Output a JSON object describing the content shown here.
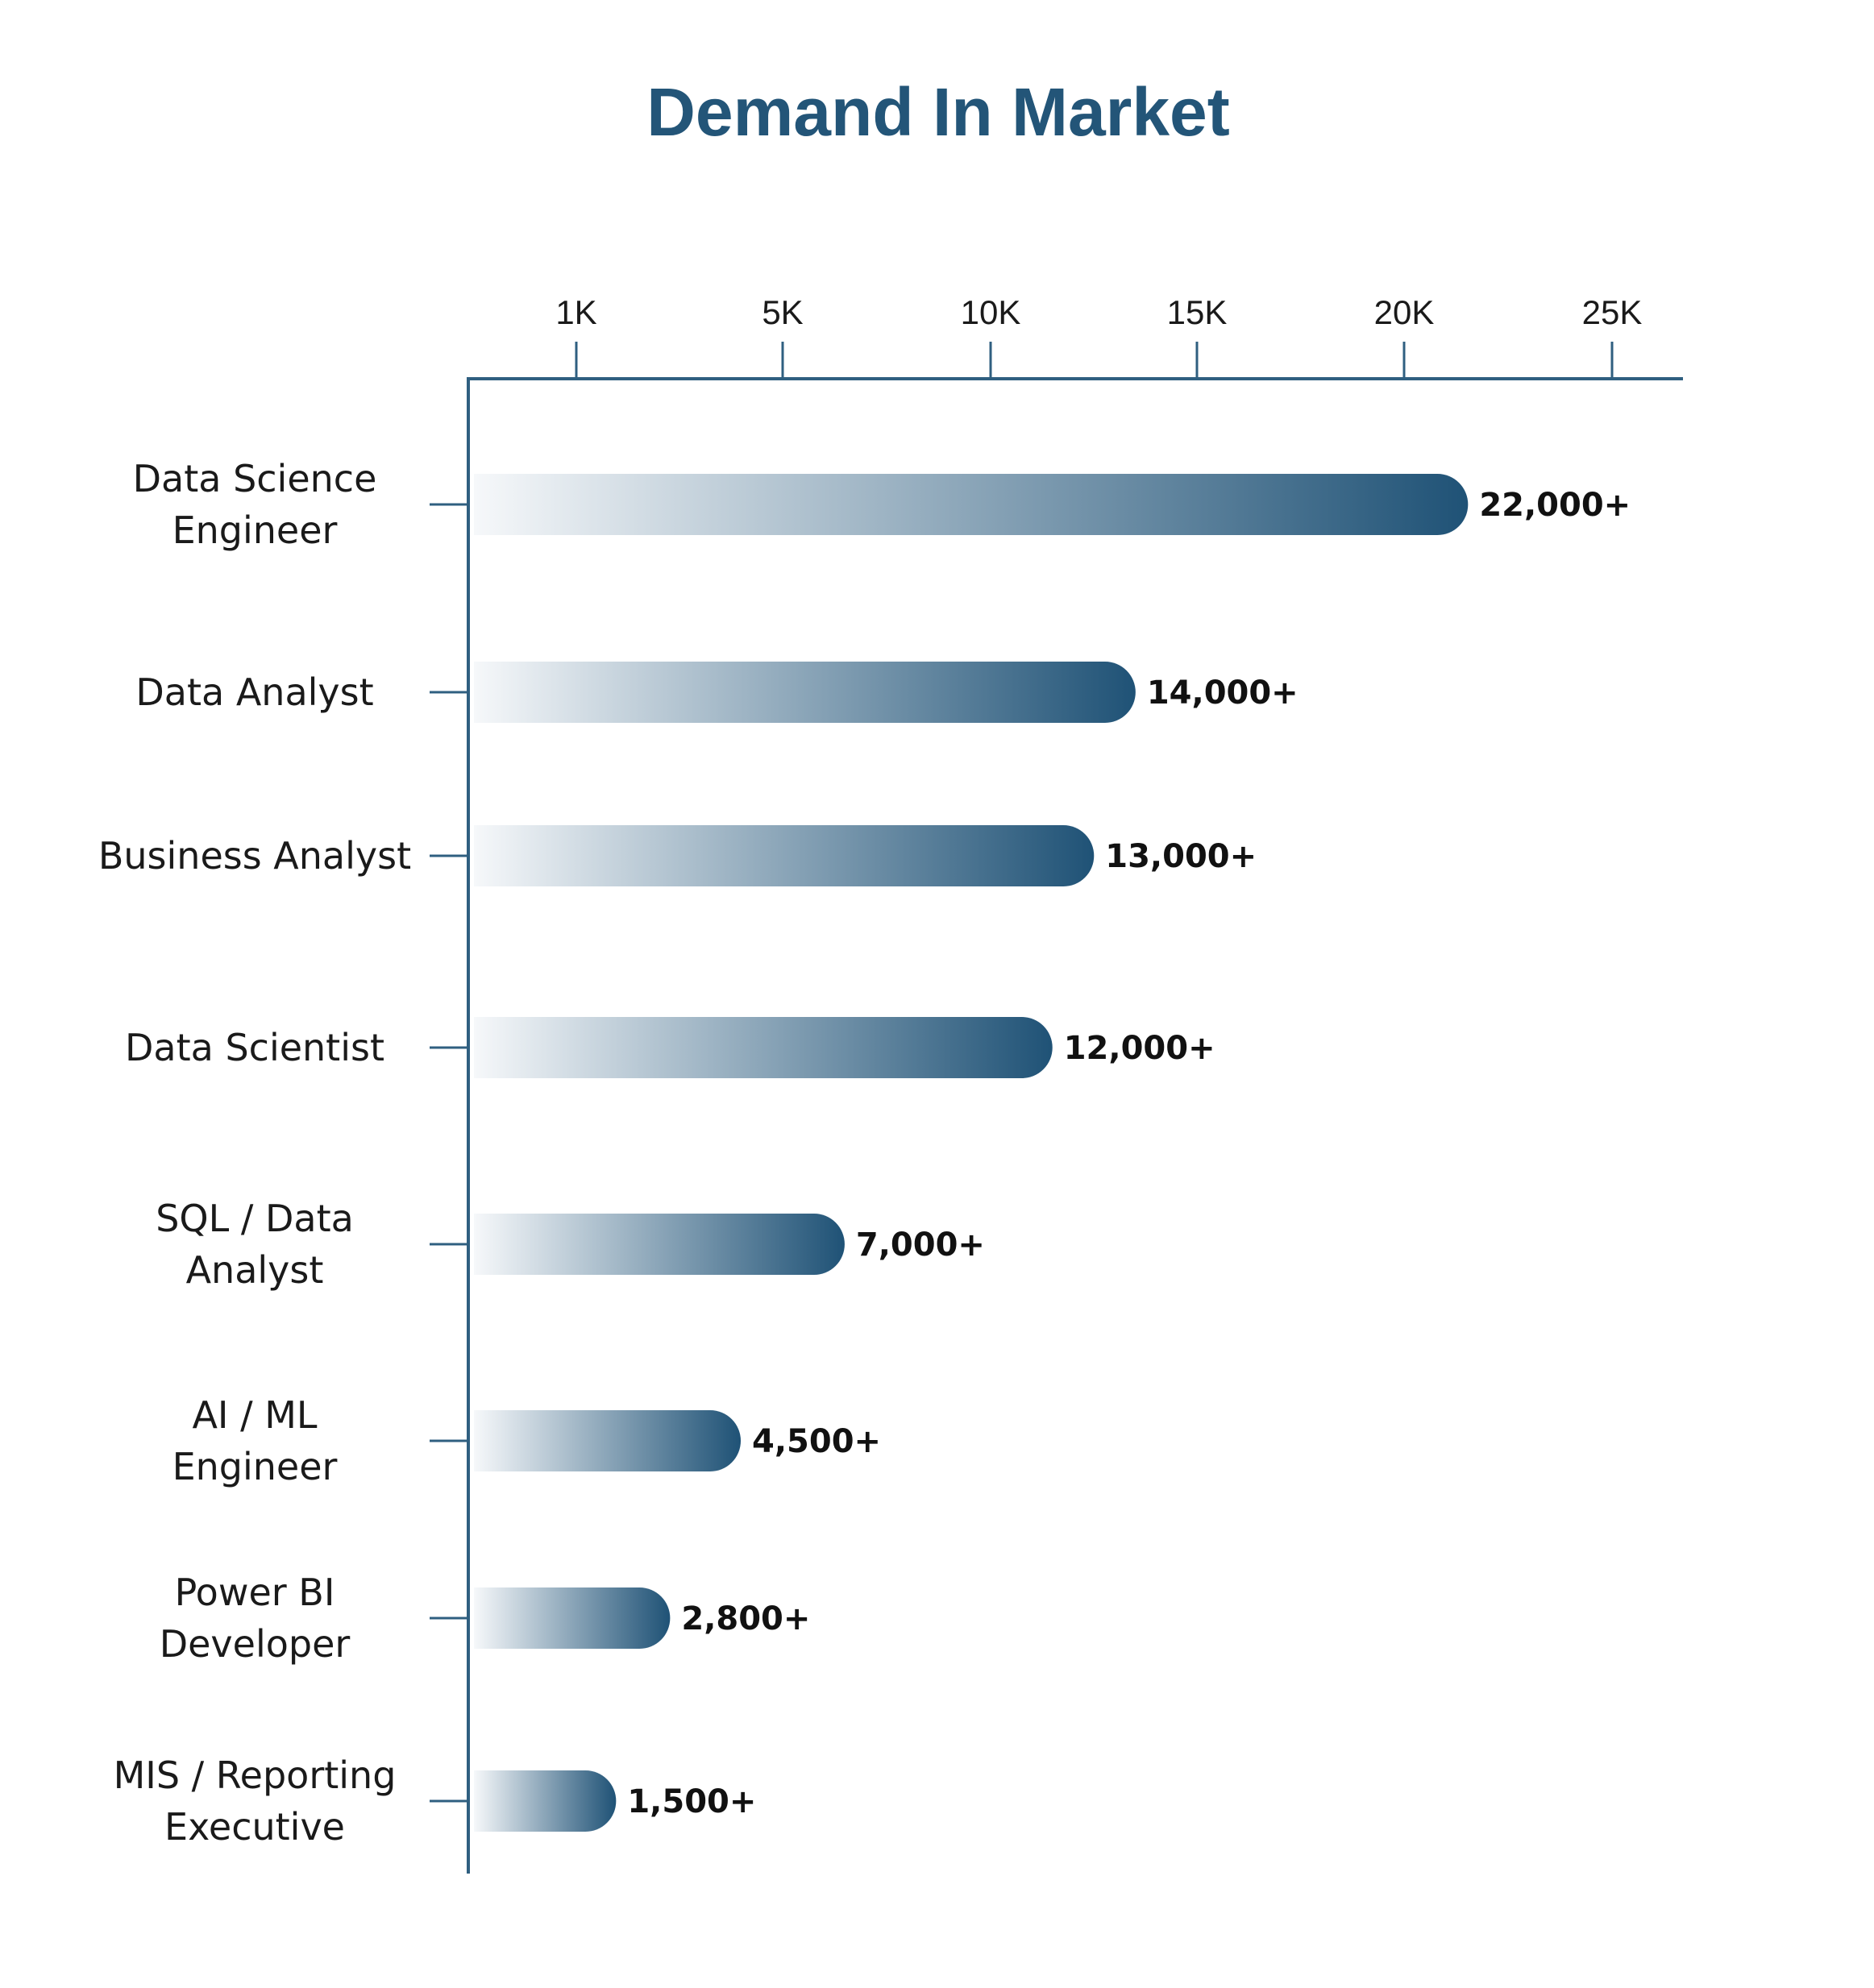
{
  "chart_data": {
    "type": "bar",
    "orientation": "horizontal",
    "title": "Demand In Market",
    "xlabel": "",
    "ylabel": "",
    "x_ticks": [
      "1K",
      "5K",
      "10K",
      "15K",
      "20K",
      "25K"
    ],
    "x_tick_values": [
      1000,
      5000,
      10000,
      15000,
      20000,
      25000
    ],
    "xlim": [
      0,
      26000
    ],
    "grid": false,
    "categories": [
      [
        "Data Science",
        "Engineer"
      ],
      [
        "Data Analyst"
      ],
      [
        "Business Analyst"
      ],
      [
        "Data Scientist"
      ],
      [
        "SQL / Data",
        "Analyst"
      ],
      [
        "AI / ML",
        "Engineer"
      ],
      [
        "Power BI",
        "Developer"
      ],
      [
        "MIS / Reporting",
        "Executive"
      ]
    ],
    "values": [
      22000,
      14000,
      13000,
      12000,
      7000,
      4500,
      2800,
      1500
    ],
    "value_labels": [
      "22,000+",
      "14,000+",
      "13,000+",
      "12,000+",
      "7,000+",
      "4,500+",
      "2,800+",
      "1,500+"
    ],
    "colors": {
      "title": "#235578",
      "axis": "#2f5f80",
      "bar_start": "#f6f8fa",
      "bar_end": "#1f5276"
    }
  }
}
